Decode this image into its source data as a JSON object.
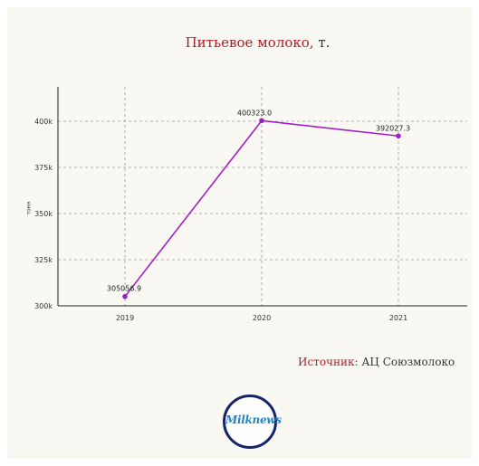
{
  "header": {
    "title_main": "Питьевое молоко,",
    "title_unit": " т."
  },
  "footer": {
    "source_label": "Источник:",
    "source_value": " АЦ Союзмолоко",
    "logo_text": "Milknews"
  },
  "chart_data": {
    "type": "line",
    "title": "Питьевое молоко, т.",
    "ylabel": "тонн",
    "xlabel": "",
    "x": [
      "2019",
      "2020",
      "2021"
    ],
    "series": [
      {
        "values": [
          305056.9,
          400323.0,
          392027.3
        ]
      }
    ],
    "data_labels": [
      "305056.9",
      "400323.0",
      "392027.3"
    ],
    "ylim": [
      300000,
      410000
    ],
    "y_ticks": [
      300000,
      325000,
      350000,
      375000,
      400000
    ],
    "y_tick_labels": [
      "300k",
      "325k",
      "350k",
      "375k",
      "400k"
    ],
    "grid": true,
    "line_color": "#a020c8",
    "accent_color": "#b01a2a"
  }
}
